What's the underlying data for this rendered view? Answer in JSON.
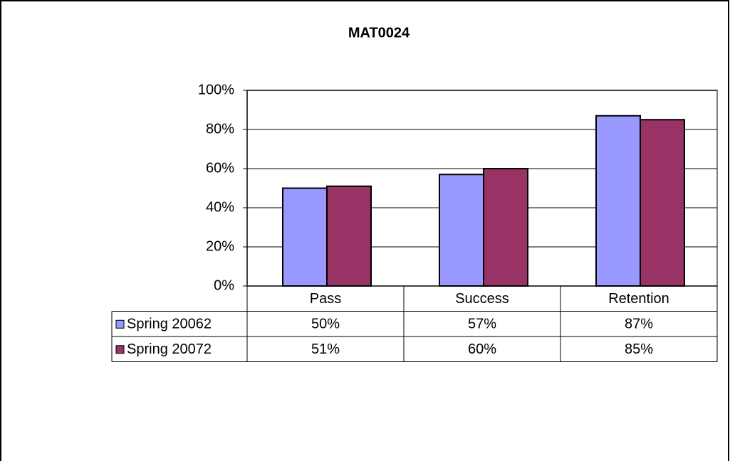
{
  "chart_data": {
    "type": "bar",
    "title": "MAT0024",
    "categories": [
      "Pass",
      "Success",
      "Retention"
    ],
    "series": [
      {
        "name": "Spring 20062",
        "color": "#9999ff",
        "values": [
          50,
          57,
          87
        ],
        "value_labels": [
          "50%",
          "57%",
          "87%"
        ]
      },
      {
        "name": "Spring 20072",
        "color": "#993366",
        "values": [
          51,
          60,
          85
        ],
        "value_labels": [
          "51%",
          "60%",
          "85%"
        ]
      }
    ],
    "ylim": [
      0,
      100
    ],
    "yticks": [
      {
        "value": 0,
        "label": "0%"
      },
      {
        "value": 20,
        "label": "20%"
      },
      {
        "value": 40,
        "label": "40%"
      },
      {
        "value": 60,
        "label": "60%"
      },
      {
        "value": 80,
        "label": "80%"
      },
      {
        "value": 100,
        "label": "100%"
      }
    ],
    "grid": true
  }
}
